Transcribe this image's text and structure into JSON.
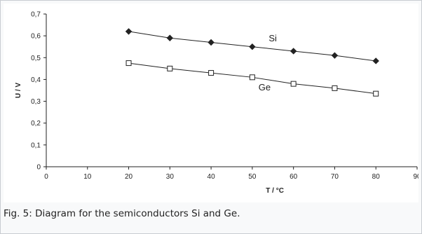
{
  "caption": "Fig. 5: Diagram for the semiconductors Si and Ge.",
  "chart_data": {
    "type": "line",
    "xlabel": "T / °C",
    "ylabel": "U / V",
    "xlim": [
      0,
      90
    ],
    "ylim": [
      0,
      0.7
    ],
    "x_ticks": [
      "0",
      "10",
      "20",
      "30",
      "40",
      "50",
      "60",
      "70",
      "80",
      "90"
    ],
    "y_ticks": [
      "0",
      "0,1",
      "0,2",
      "0,3",
      "0,4",
      "0,5",
      "0,6",
      "0,7"
    ],
    "grid": false,
    "series": [
      {
        "name": "Si",
        "marker": "diamond",
        "x": [
          20,
          30,
          40,
          50,
          60,
          70,
          80
        ],
        "y": [
          0.62,
          0.59,
          0.57,
          0.55,
          0.53,
          0.51,
          0.485
        ]
      },
      {
        "name": "Ge",
        "marker": "square",
        "x": [
          20,
          30,
          40,
          50,
          60,
          70,
          80
        ],
        "y": [
          0.475,
          0.45,
          0.43,
          0.41,
          0.38,
          0.36,
          0.335
        ]
      }
    ],
    "colors": {
      "line": "#222222",
      "axis": "#222222",
      "text": "#222222"
    }
  }
}
